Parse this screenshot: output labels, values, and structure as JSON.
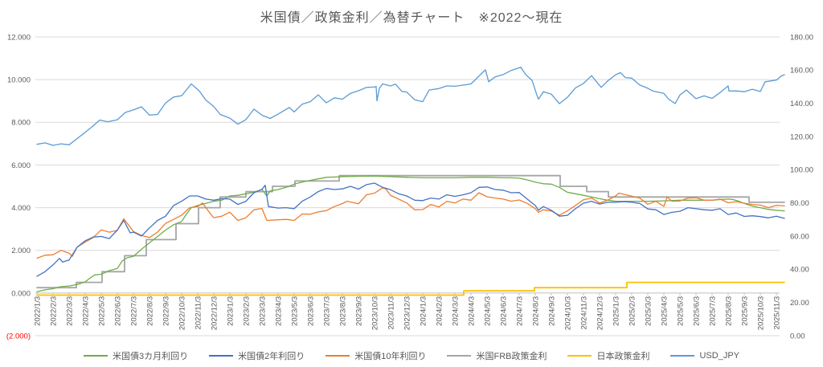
{
  "title": "米国債／政策金利／為替チャート　※2022〜現在",
  "colors": {
    "background": "#FFFFFF",
    "title_text": "#595959",
    "axis_text": "#595959",
    "negative_tick_text": "#FF0000",
    "gridline": "#D9D9D9",
    "axis_line": "#BFBFBF"
  },
  "chart_data": {
    "type": "line",
    "title": "米国債／政策金利／為替チャート　※2022〜現在",
    "grid": true,
    "legend_position": "bottom",
    "x_axis": {
      "unit": "month (x values are month offsets from 2022/1/3)",
      "label_rotation": -90,
      "labels": [
        "2022/1/3",
        "2022/2/3",
        "2022/3/3",
        "2022/4/3",
        "2022/5/3",
        "2022/6/3",
        "2022/7/3",
        "2022/8/3",
        "2022/9/3",
        "2022/10/3",
        "2022/11/3",
        "2022/12/3",
        "2023/1/3",
        "2023/2/3",
        "2023/3/3",
        "2023/4/3",
        "2023/5/3",
        "2023/6/3",
        "2023/7/3",
        "2023/8/3",
        "2023/9/3",
        "2023/10/3",
        "2023/11/3",
        "2023/12/3",
        "2024/1/3",
        "2024/2/3",
        "2024/3/3",
        "2024/4/3",
        "2024/5/3",
        "2024/6/3",
        "2024/7/3",
        "2024/8/3",
        "2024/9/3",
        "2024/10/3",
        "2024/11/3",
        "2024/12/3",
        "2025/1/3",
        "2025/2/3",
        "2025/3/3",
        "2025/4/3",
        "2025/5/3",
        "2025/6/3",
        "2025/7/3",
        "2025/8/3",
        "2025/9/3",
        "2025/10/3",
        "2025/11/3"
      ]
    },
    "y_axis_left": {
      "min": -2,
      "max": 12,
      "tick_values": [
        12,
        10,
        8,
        6,
        4,
        2,
        0,
        -2
      ],
      "tick_labels": [
        "12.000",
        "10.000",
        "8.000",
        "6.000",
        "4.000",
        "2.000",
        "0.000",
        "(2.000)"
      ]
    },
    "y_axis_right": {
      "min": 0,
      "max": 180,
      "tick_values": [
        180,
        160,
        140,
        120,
        100,
        80,
        60,
        40,
        20,
        0
      ],
      "tick_labels": [
        "180.00",
        "160.00",
        "140.00",
        "120.00",
        "100.00",
        "80.00",
        "60.00",
        "40.00",
        "20.00",
        "0.00"
      ]
    },
    "series": [
      {
        "name": "米国債3カ月利回り",
        "color": "#70AD47",
        "axis": "left",
        "step": false,
        "x": [
          0,
          0.5,
          1,
          1.5,
          2,
          2.5,
          3,
          3.3,
          3.6,
          4,
          4.5,
          5,
          5.3,
          5.6,
          6,
          6.5,
          7,
          7.5,
          8,
          8.5,
          9,
          9.3,
          9.6,
          10,
          10.5,
          11,
          11.5,
          12,
          12.5,
          13,
          13.5,
          14,
          14.3,
          14.5,
          15,
          15.5,
          16,
          16.5,
          17,
          17.5,
          18,
          19,
          20,
          21,
          22,
          23,
          24,
          25,
          26,
          27,
          28,
          29,
          29.5,
          30,
          30.5,
          31,
          31.5,
          32,
          32.5,
          33,
          33.5,
          34,
          34.5,
          35,
          35.5,
          36,
          37,
          38,
          39,
          40,
          41,
          42,
          42.5,
          43,
          43.3,
          43.6,
          44,
          44.3,
          44.6,
          45,
          45.5,
          46,
          46.5
        ],
        "y": [
          0.06,
          0.15,
          0.2,
          0.3,
          0.33,
          0.4,
          0.52,
          0.7,
          0.85,
          0.88,
          1.05,
          1.15,
          1.5,
          1.65,
          1.72,
          2.05,
          2.35,
          2.65,
          2.95,
          3.2,
          3.35,
          3.7,
          4.0,
          4.1,
          4.2,
          4.3,
          4.35,
          4.55,
          4.58,
          4.65,
          4.72,
          4.85,
          4.55,
          4.78,
          4.85,
          4.95,
          5.1,
          5.2,
          5.28,
          5.35,
          5.42,
          5.45,
          5.47,
          5.48,
          5.45,
          5.42,
          5.4,
          5.4,
          5.4,
          5.42,
          5.42,
          5.4,
          5.4,
          5.38,
          5.3,
          5.2,
          5.12,
          5.1,
          4.95,
          4.72,
          4.65,
          4.58,
          4.5,
          4.42,
          4.35,
          4.3,
          4.3,
          4.3,
          4.32,
          4.35,
          4.35,
          4.35,
          4.38,
          4.4,
          4.38,
          4.32,
          4.2,
          4.12,
          4.05,
          4.0,
          3.92,
          3.88,
          3.85
        ]
      },
      {
        "name": "米国債2年利回り",
        "color": "#4472C4",
        "axis": "left",
        "step": false,
        "x": [
          0,
          0.5,
          1,
          1.4,
          1.6,
          2,
          2.5,
          3,
          3.5,
          4,
          4.5,
          5,
          5.4,
          5.8,
          6,
          6.5,
          7,
          7.5,
          8,
          8.5,
          9,
          9.5,
          10,
          10.5,
          11,
          11.5,
          12,
          12.5,
          13,
          13.5,
          14,
          14.2,
          14.4,
          15,
          15.5,
          16,
          16.5,
          17,
          17.5,
          18,
          18.5,
          19,
          19.5,
          20,
          20.5,
          21,
          21.5,
          22,
          22.5,
          23,
          23.5,
          24,
          24.5,
          25,
          25.5,
          26,
          26.5,
          27,
          27.5,
          28,
          28.5,
          29,
          29.5,
          30,
          30.5,
          31,
          31.2,
          31.5,
          32,
          32.5,
          33,
          33.5,
          34,
          34.5,
          35,
          35.5,
          36,
          36.5,
          37,
          37.5,
          38,
          38.5,
          39,
          39.5,
          40,
          40.5,
          41,
          41.5,
          42,
          42.5,
          43,
          43.5,
          44,
          44.5,
          45,
          45.5,
          46,
          46.5
        ],
        "y": [
          0.78,
          1.0,
          1.32,
          1.62,
          1.45,
          1.55,
          2.15,
          2.45,
          2.62,
          2.65,
          2.55,
          2.95,
          3.4,
          2.82,
          2.85,
          2.67,
          3.05,
          3.4,
          3.6,
          4.1,
          4.3,
          4.55,
          4.55,
          4.4,
          4.35,
          4.42,
          4.4,
          4.15,
          4.3,
          4.7,
          4.86,
          5.05,
          4.05,
          3.98,
          4.0,
          3.95,
          4.3,
          4.5,
          4.75,
          4.9,
          4.85,
          4.88,
          5.0,
          4.87,
          5.08,
          5.15,
          4.95,
          4.84,
          4.65,
          4.55,
          4.35,
          4.33,
          4.45,
          4.4,
          4.6,
          4.53,
          4.6,
          4.7,
          4.95,
          4.97,
          4.85,
          4.82,
          4.7,
          4.71,
          4.4,
          4.1,
          3.88,
          4.05,
          3.88,
          3.6,
          3.64,
          3.95,
          4.21,
          4.3,
          4.17,
          4.25,
          4.25,
          4.28,
          4.25,
          4.2,
          3.94,
          3.9,
          3.68,
          3.78,
          3.83,
          4.0,
          3.95,
          3.9,
          3.88,
          3.95,
          3.68,
          3.75,
          3.59,
          3.62,
          3.58,
          3.52,
          3.6,
          3.5
        ]
      },
      {
        "name": "米国債10年利回り",
        "color": "#ED7D31",
        "axis": "left",
        "step": false,
        "x": [
          0,
          0.5,
          1,
          1.5,
          2,
          2.2,
          2.5,
          3,
          3.5,
          4,
          4.5,
          5,
          5.4,
          6,
          6.5,
          7,
          7.5,
          8,
          8.5,
          9,
          9.5,
          10,
          10.3,
          10.8,
          11,
          11.5,
          12,
          12.5,
          13,
          13.5,
          14,
          14.3,
          15,
          15.5,
          16,
          16.5,
          17,
          17.5,
          18,
          18.5,
          19,
          19.3,
          20,
          20.5,
          21,
          21.5,
          21.7,
          22,
          22.5,
          23,
          23.5,
          24,
          24.5,
          25,
          25.5,
          26,
          26.5,
          27,
          27.5,
          28,
          28.5,
          29,
          29.5,
          30,
          30.5,
          31,
          31.2,
          31.5,
          32,
          32.5,
          33,
          33.5,
          34,
          34.5,
          35,
          35.5,
          36,
          36.2,
          37,
          37.5,
          38,
          38.5,
          39,
          39.2,
          39.5,
          40,
          40.5,
          41,
          41.5,
          42,
          42.5,
          43,
          43.5,
          44,
          44.5,
          45,
          45.5,
          46,
          46.5
        ],
        "y": [
          1.63,
          1.77,
          1.79,
          2.0,
          1.86,
          1.72,
          2.15,
          2.39,
          2.6,
          2.96,
          2.85,
          2.94,
          3.48,
          2.88,
          2.7,
          2.6,
          2.85,
          3.26,
          3.45,
          3.65,
          4.0,
          4.05,
          4.22,
          3.7,
          3.53,
          3.6,
          3.79,
          3.4,
          3.53,
          3.9,
          3.96,
          3.4,
          3.43,
          3.45,
          3.4,
          3.7,
          3.69,
          3.8,
          3.86,
          4.05,
          4.19,
          4.3,
          4.18,
          4.6,
          4.68,
          4.93,
          4.88,
          4.57,
          4.4,
          4.22,
          3.9,
          3.91,
          4.15,
          4.03,
          4.3,
          4.22,
          4.4,
          4.35,
          4.7,
          4.51,
          4.45,
          4.4,
          4.3,
          4.36,
          4.2,
          3.95,
          3.78,
          3.9,
          3.84,
          3.65,
          3.85,
          4.1,
          4.37,
          4.45,
          4.22,
          4.35,
          4.55,
          4.68,
          4.54,
          4.45,
          4.16,
          4.3,
          4.06,
          4.5,
          4.3,
          4.31,
          4.45,
          4.46,
          4.35,
          4.35,
          4.4,
          4.23,
          4.28,
          4.21,
          4.15,
          4.12,
          4.0,
          4.11,
          4.08
        ]
      },
      {
        "name": "米国FRB政策金利",
        "color": "#A5A5A5",
        "axis": "left",
        "step": true,
        "x": [
          0,
          2.45,
          4.05,
          5.45,
          6.8,
          8.65,
          10.05,
          11.4,
          13.0,
          14.65,
          16.05,
          18.8,
          32.55,
          34.2,
          35.55,
          44.3,
          46.5
        ],
        "y": [
          0.25,
          0.5,
          1.0,
          1.75,
          2.5,
          3.25,
          4.0,
          4.5,
          4.75,
          5.0,
          5.25,
          5.5,
          5.0,
          4.75,
          4.5,
          4.25,
          4.25
        ]
      },
      {
        "name": "日本政策金利",
        "color": "#FFC000",
        "axis": "left",
        "step": true,
        "x": [
          0,
          26.55,
          30.95,
          36.7,
          46.5
        ],
        "y": [
          -0.1,
          0.1,
          0.25,
          0.5,
          0.5
        ]
      },
      {
        "name": "USD_JPY",
        "color": "#5B9BD5",
        "axis": "right",
        "step": false,
        "x": [
          0,
          0.5,
          1,
          1.5,
          2,
          2.6,
          3,
          3.5,
          3.9,
          4.4,
          5,
          5.5,
          6,
          6.5,
          7,
          7.5,
          8,
          8.5,
          9,
          9.6,
          10.1,
          10.5,
          11,
          11.4,
          12,
          12.5,
          13,
          13.5,
          14,
          14.5,
          15,
          15.7,
          16,
          16.5,
          17,
          17.5,
          18,
          18.5,
          19,
          19.5,
          20,
          20.5,
          21,
          21.1,
          21.15,
          21.3,
          21.5,
          22,
          22.3,
          22.7,
          23,
          23.5,
          24,
          24.4,
          25,
          25.5,
          26,
          26.8,
          27,
          27.9,
          28.1,
          28.5,
          29,
          29.5,
          30.1,
          30.4,
          30.8,
          31.1,
          31.2,
          31.5,
          32,
          32.5,
          33,
          33.5,
          34,
          34.5,
          35.1,
          35.5,
          36,
          36.3,
          36.6,
          37,
          37.5,
          38,
          38.3,
          39,
          39.3,
          39.7,
          40,
          40.4,
          41,
          41.5,
          42,
          42.5,
          43,
          43.05,
          43.5,
          44,
          44.5,
          45,
          45.3,
          46,
          46.3,
          46.5
        ],
        "y": [
          115.3,
          116.2,
          114.7,
          115.6,
          115.0,
          119.5,
          122.5,
          126.5,
          129.9,
          128.9,
          130.1,
          134.5,
          136.0,
          137.9,
          132.9,
          133.3,
          140.2,
          143.8,
          144.6,
          151.7,
          147.5,
          142.0,
          138.1,
          133.3,
          131.1,
          127.4,
          130.2,
          136.5,
          132.8,
          130.9,
          133.5,
          137.5,
          134.8,
          139.5,
          141.0,
          145.1,
          140.3,
          143.3,
          142.5,
          146.0,
          147.6,
          149.6,
          149.8,
          150.2,
          141.5,
          149.0,
          151.7,
          150.5,
          151.6,
          147.2,
          146.8,
          142.1,
          141.0,
          148.0,
          148.9,
          150.5,
          150.3,
          151.4,
          151.7,
          160.2,
          153.0,
          155.9,
          157.3,
          159.8,
          161.7,
          157.4,
          153.8,
          145.0,
          142.5,
          147.0,
          145.5,
          139.8,
          143.6,
          149.3,
          152.0,
          156.7,
          149.6,
          153.5,
          157.2,
          158.5,
          155.5,
          155.2,
          151.0,
          149.1,
          147.5,
          146.0,
          142.5,
          139.9,
          145.0,
          148.0,
          142.8,
          144.5,
          143.0,
          146.5,
          150.5,
          147.4,
          147.5,
          147.0,
          148.5,
          147.1,
          153.0,
          154.0,
          156.5,
          157.2
        ]
      }
    ]
  }
}
